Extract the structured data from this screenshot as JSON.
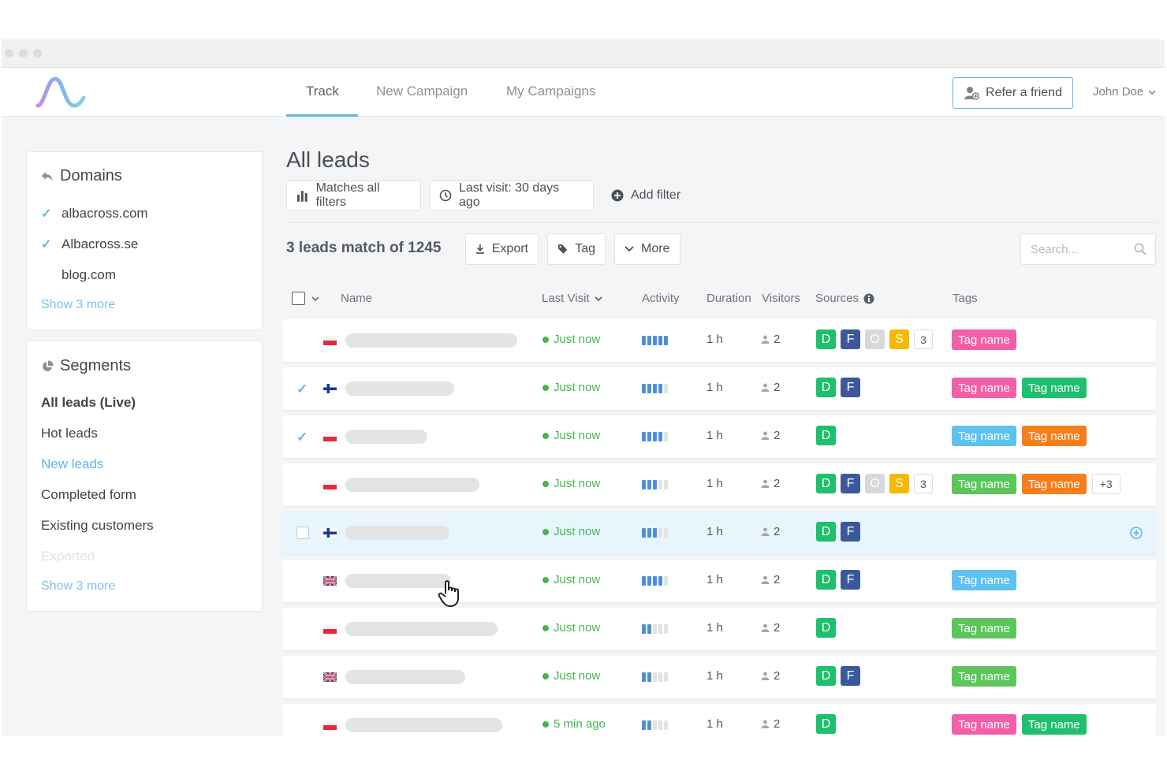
{
  "nav": {
    "tabs": [
      {
        "label": "Track",
        "active": true
      },
      {
        "label": "New Campaign",
        "active": false
      },
      {
        "label": "My Campaigns",
        "active": false
      }
    ],
    "refer_label": "Refer a friend",
    "user_name": "John Doe"
  },
  "sidebar": {
    "domains": {
      "title": "Domains",
      "items": [
        {
          "label": "albacross.com",
          "checked": true
        },
        {
          "label": "Albacross.se",
          "checked": true
        },
        {
          "label": "blog.com",
          "checked": false
        }
      ],
      "show_more": "Show 3 more"
    },
    "segments": {
      "title": "Segments",
      "items": [
        {
          "label": "All leads (Live)",
          "style": "bold"
        },
        {
          "label": "Hot leads",
          "style": "normal"
        },
        {
          "label": "New leads",
          "style": "link"
        },
        {
          "label": "Completed form",
          "style": "normal"
        },
        {
          "label": "Existing customers",
          "style": "normal"
        },
        {
          "label": "Exported",
          "style": "muted"
        }
      ],
      "show_more": "Show 3 more"
    }
  },
  "main": {
    "title": "All leads",
    "filters": [
      {
        "label": "Matches all filters",
        "icon": "bar-chart-icon"
      },
      {
        "label": "Last visit: 30 days ago",
        "icon": "clock-icon"
      },
      {
        "label": "Add filter",
        "icon": "plus-circle-icon"
      }
    ],
    "count_label": "3 leads match of 1245",
    "actions": [
      {
        "label": "Export",
        "icon": "download-icon"
      },
      {
        "label": "Tag",
        "icon": "tag-icon"
      },
      {
        "label": "More",
        "icon": "chevron-down-icon"
      }
    ],
    "search_placeholder": "Search...",
    "columns": {
      "name": "Name",
      "last_visit": "Last Visit",
      "activity": "Activity",
      "duration": "Duration",
      "visitors": "Visitors",
      "sources": "Sources",
      "tags": "Tags"
    },
    "rows": [
      {
        "state": "none",
        "flag": "poland",
        "last_visit": "Just now",
        "activity": 5,
        "duration": "1 h",
        "visitors": "2",
        "sources": [
          {
            "label": "D",
            "color": "#1fbf6d"
          },
          {
            "label": "F",
            "color": "#3b5998"
          },
          {
            "label": "O",
            "color": "#d7d8da"
          },
          {
            "label": "S",
            "color": "#f5b800"
          },
          {
            "label": "3",
            "color": "count"
          }
        ],
        "tags": [
          {
            "label": "Tag name",
            "color": "#f45fa9"
          }
        ],
        "more": ""
      },
      {
        "state": "checked",
        "flag": "finland",
        "last_visit": "Just now",
        "activity": 4,
        "duration": "1 h",
        "visitors": "2",
        "sources": [
          {
            "label": "D",
            "color": "#1fbf6d"
          },
          {
            "label": "F",
            "color": "#3b5998"
          }
        ],
        "tags": [
          {
            "label": "Tag name",
            "color": "#f45fa9"
          },
          {
            "label": "Tag name",
            "color": "#1fbf6d"
          }
        ],
        "more": ""
      },
      {
        "state": "checked",
        "flag": "poland",
        "last_visit": "Just now",
        "activity": 4,
        "duration": "1 h",
        "visitors": "2",
        "sources": [
          {
            "label": "D",
            "color": "#1fbf6d"
          }
        ],
        "tags": [
          {
            "label": "Tag name",
            "color": "#5ec2f1"
          },
          {
            "label": "Tag name",
            "color": "#f77e1b"
          }
        ],
        "more": ""
      },
      {
        "state": "none",
        "flag": "poland",
        "last_visit": "Just now",
        "activity": 3,
        "duration": "1 h",
        "visitors": "2",
        "sources": [
          {
            "label": "D",
            "color": "#1fbf6d"
          },
          {
            "label": "F",
            "color": "#3b5998"
          },
          {
            "label": "O",
            "color": "#d7d8da"
          },
          {
            "label": "S",
            "color": "#f5b800"
          },
          {
            "label": "3",
            "color": "count"
          }
        ],
        "tags": [
          {
            "label": "Tag name",
            "color": "#5cc65c"
          },
          {
            "label": "Tag name",
            "color": "#f77e1b"
          }
        ],
        "more": "+3"
      },
      {
        "state": "hover",
        "flag": "finland",
        "last_visit": "Just now",
        "activity": 3,
        "duration": "1 h",
        "visitors": "2",
        "sources": [
          {
            "label": "D",
            "color": "#1fbf6d"
          },
          {
            "label": "F",
            "color": "#3b5998"
          }
        ],
        "tags": [],
        "more": ""
      },
      {
        "state": "none",
        "flag": "uk",
        "last_visit": "Just now",
        "activity": 4,
        "duration": "1 h",
        "visitors": "2",
        "sources": [
          {
            "label": "D",
            "color": "#1fbf6d"
          },
          {
            "label": "F",
            "color": "#3b5998"
          }
        ],
        "tags": [
          {
            "label": "Tag name",
            "color": "#5ec2f1"
          }
        ],
        "more": ""
      },
      {
        "state": "none",
        "flag": "poland",
        "last_visit": "Just now",
        "activity": 2,
        "duration": "1 h",
        "visitors": "2",
        "sources": [
          {
            "label": "D",
            "color": "#1fbf6d"
          }
        ],
        "tags": [
          {
            "label": "Tag name",
            "color": "#5cc65c"
          }
        ],
        "more": ""
      },
      {
        "state": "none",
        "flag": "uk",
        "last_visit": "Just now",
        "activity": 2,
        "duration": "1 h",
        "visitors": "2",
        "sources": [
          {
            "label": "D",
            "color": "#1fbf6d"
          },
          {
            "label": "F",
            "color": "#3b5998"
          }
        ],
        "tags": [
          {
            "label": "Tag name",
            "color": "#5cc65c"
          }
        ],
        "more": ""
      },
      {
        "state": "none",
        "flag": "poland",
        "last_visit": "5 min ago",
        "activity": 2,
        "duration": "1 h",
        "visitors": "2",
        "sources": [
          {
            "label": "D",
            "color": "#1fbf6d"
          }
        ],
        "tags": [
          {
            "label": "Tag name",
            "color": "#f45fa9"
          },
          {
            "label": "Tag name",
            "color": "#1fbf6d"
          }
        ],
        "more": ""
      }
    ]
  }
}
